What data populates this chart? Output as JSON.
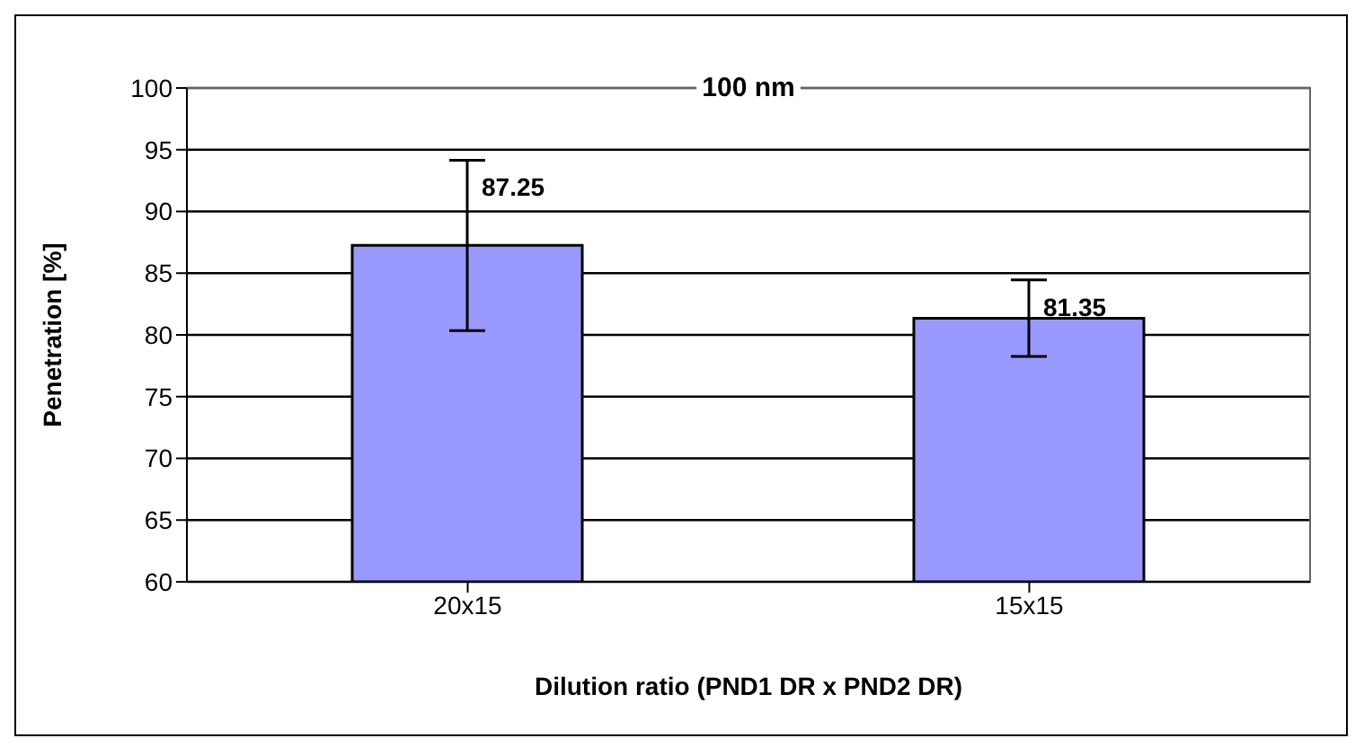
{
  "chart_data": {
    "type": "bar",
    "title": "100 nm",
    "xlabel": "Dilution ratio (PND1 DR x PND2 DR)",
    "ylabel": "Penetration [%]",
    "categories": [
      "20x15",
      "15x15"
    ],
    "values": [
      87.25,
      81.35
    ],
    "errors": [
      6.9,
      3.1
    ],
    "color": "#9999ff",
    "data_labels": true,
    "ylim": [
      60,
      100
    ],
    "yticks": [
      60,
      65,
      70,
      75,
      80,
      85,
      90,
      95,
      100
    ],
    "grid": "y"
  }
}
